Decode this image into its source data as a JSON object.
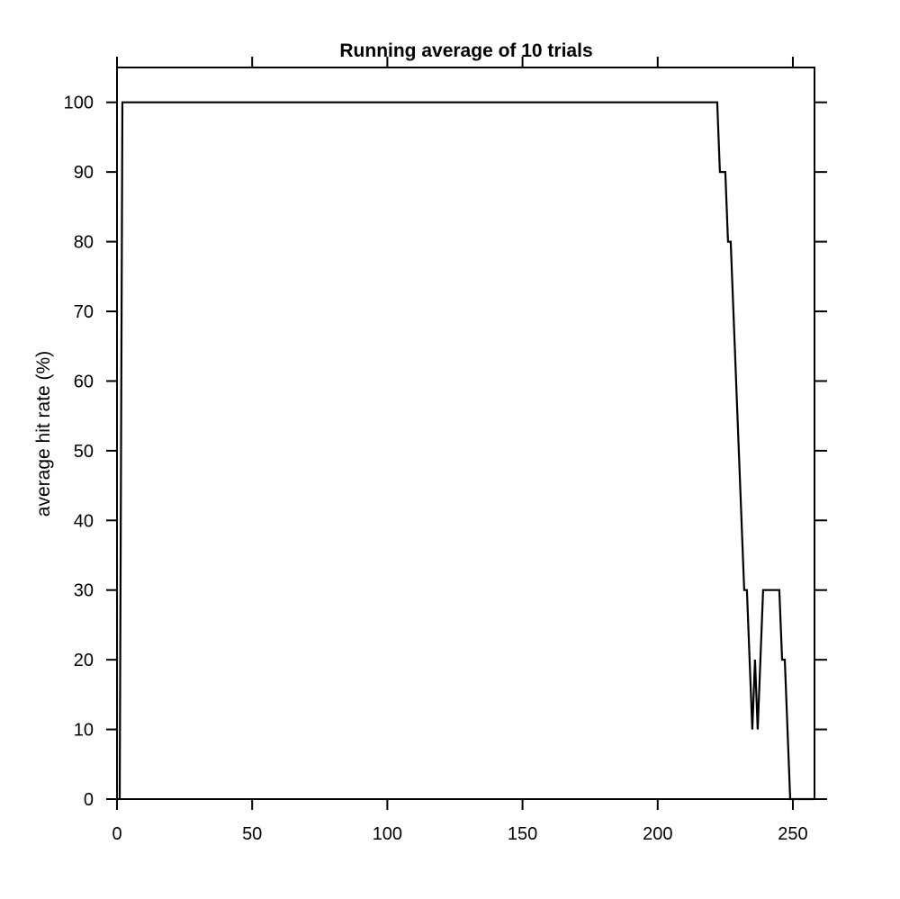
{
  "chart_data": {
    "type": "line",
    "title": "Running average of 10 trials",
    "xlabel": "",
    "ylabel": "average hit rate (%)",
    "xlim": [
      0,
      258
    ],
    "ylim": [
      0,
      105
    ],
    "x_ticks": [
      0,
      50,
      100,
      150,
      200,
      250
    ],
    "y_ticks": [
      0,
      10,
      20,
      30,
      40,
      50,
      60,
      70,
      80,
      90,
      100
    ],
    "grid": false,
    "legend": "none",
    "line_color": "#000000",
    "series": [
      {
        "x": [
          0,
          1,
          2,
          3,
          222,
          223,
          225,
          226,
          227,
          232,
          233,
          235,
          236,
          237,
          239,
          240,
          245,
          246,
          247,
          249,
          250,
          258
        ],
        "values": [
          0,
          0,
          100,
          100,
          100,
          90,
          90,
          80,
          80,
          30,
          30,
          10,
          20,
          10,
          30,
          30,
          30,
          20,
          20,
          0,
          0,
          0
        ]
      }
    ]
  }
}
